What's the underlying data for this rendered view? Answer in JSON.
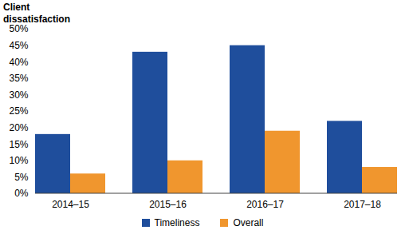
{
  "chart_data": {
    "type": "bar",
    "y_label": "Client dissatisfaction",
    "categories": [
      "2014–15",
      "2015–16",
      "2016–17",
      "2017–18"
    ],
    "series": [
      {
        "name": "Timeliness",
        "color": "#1f4e9c",
        "values": [
          18,
          43,
          45,
          22
        ]
      },
      {
        "name": "Overall",
        "color": "#f0962e",
        "values": [
          6,
          10,
          19,
          8
        ]
      }
    ],
    "ylim": [
      0,
      50
    ],
    "yticks": [
      {
        "value": 0,
        "label": "0%"
      },
      {
        "value": 5,
        "label": "5%"
      },
      {
        "value": 10,
        "label": "10%"
      },
      {
        "value": 15,
        "label": "15%"
      },
      {
        "value": 20,
        "label": "20%"
      },
      {
        "value": 25,
        "label": "25%"
      },
      {
        "value": 30,
        "label": "30%"
      },
      {
        "value": 35,
        "label": "35%"
      },
      {
        "value": 40,
        "label": "40%"
      },
      {
        "value": 45,
        "label": "45%"
      },
      {
        "value": 50,
        "label": "50%"
      }
    ],
    "grid": false,
    "legend": "bottom"
  }
}
